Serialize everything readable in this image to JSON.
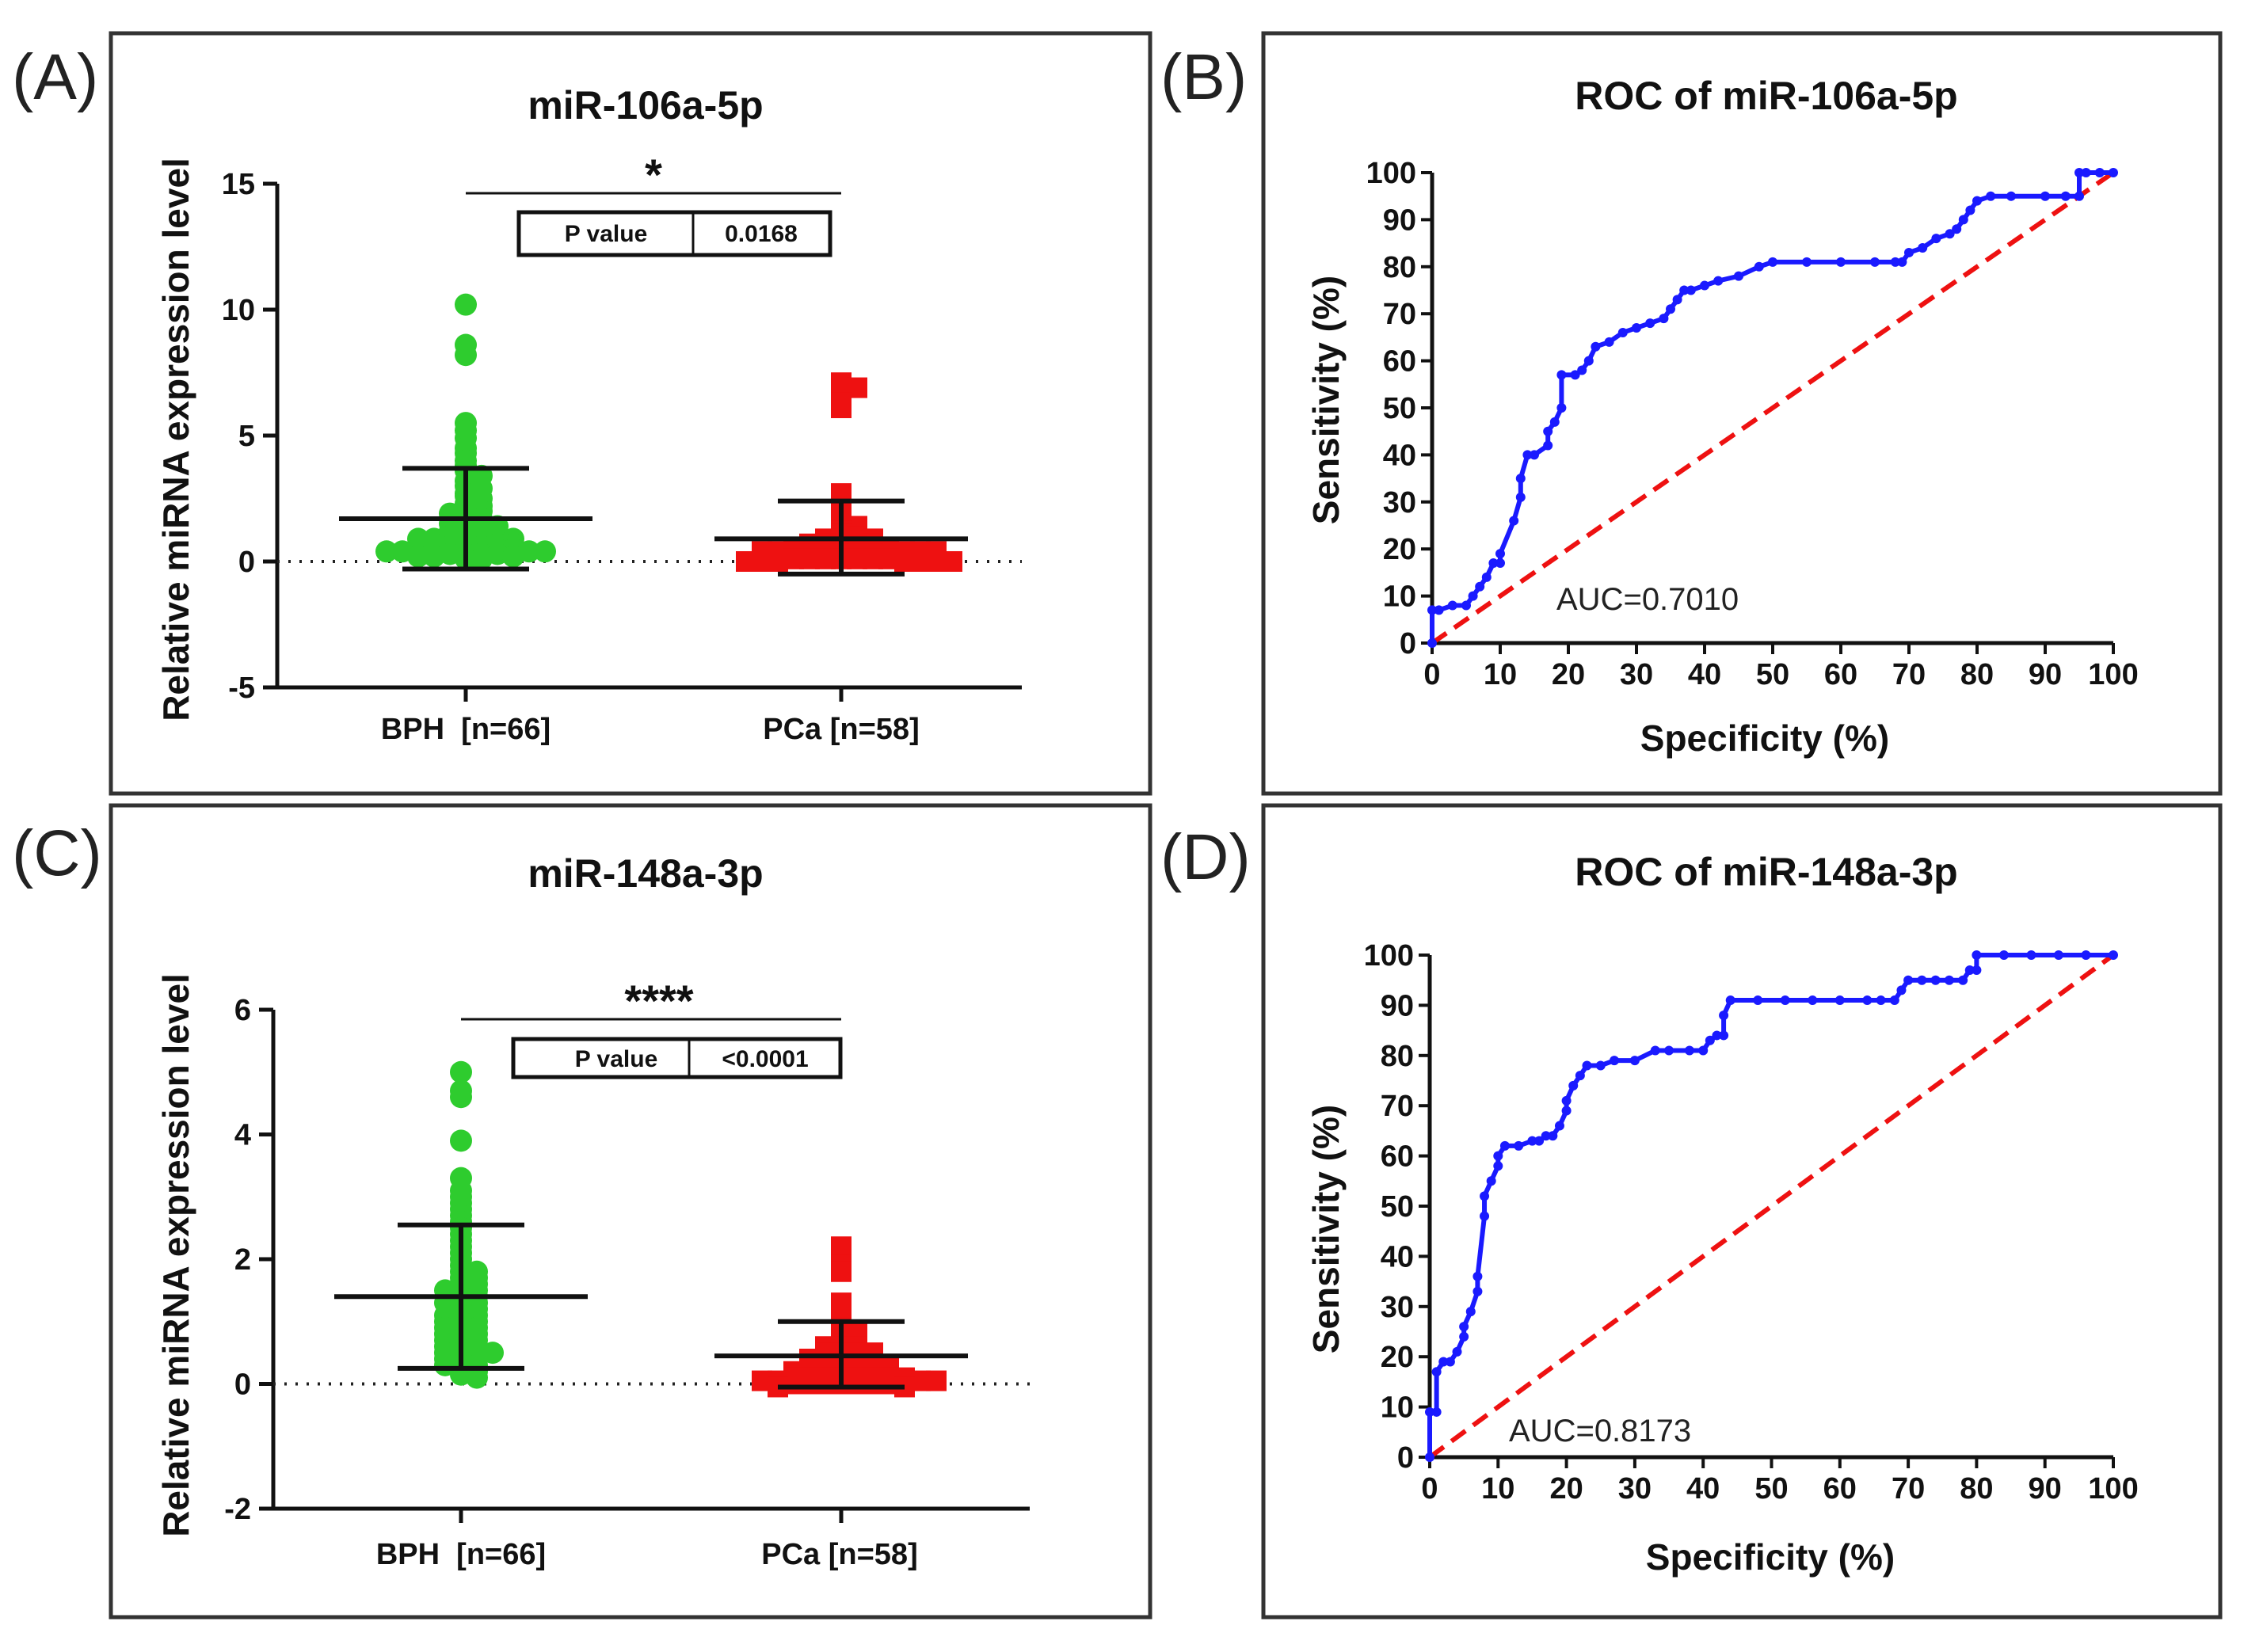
{
  "figure": {
    "panels": [
      {
        "letter": "(A)"
      },
      {
        "letter": "(B)"
      },
      {
        "letter": "(C)"
      },
      {
        "letter": "(D)"
      }
    ]
  },
  "colors": {
    "bph": "#2ecc2e",
    "pca": "#ee1111",
    "roc": "#1a1aff",
    "reference": "#ee1111",
    "axis": "#111111"
  },
  "chart_data": [
    {
      "type": "scatter",
      "title": "miR-106a-5p",
      "ylabel": "Relative miRNA expression level",
      "xlabel": "",
      "ylim": [
        -5,
        15
      ],
      "yticks": [
        "-5",
        "0",
        "5",
        "10",
        "15"
      ],
      "ytick_values": [
        -5,
        0,
        5,
        10,
        15
      ],
      "categories": [
        "BPH  [n=66]",
        "PCa [n=58]"
      ],
      "significance": "*",
      "pvalue_label": "P value",
      "pvalue": "0.0168",
      "series": [
        {
          "name": "BPH",
          "marker": "circle",
          "mean": 1.7,
          "sd_low": -0.3,
          "sd_high": 3.7,
          "values": [
            10.2,
            8.6,
            8.2,
            5.5,
            5.2,
            4.9,
            4.5,
            4.3,
            4.0,
            3.8,
            3.6,
            3.4,
            3.2,
            3.0,
            2.9,
            2.7,
            2.6,
            2.5,
            2.3,
            2.2,
            2.1,
            2.0,
            1.9,
            1.8,
            1.7,
            1.6,
            1.5,
            1.5,
            1.4,
            1.3,
            1.3,
            1.2,
            1.2,
            1.1,
            1.1,
            1.0,
            1.0,
            0.9,
            0.9,
            0.9,
            0.8,
            0.8,
            0.8,
            0.7,
            0.7,
            0.7,
            0.6,
            0.6,
            0.6,
            0.5,
            0.5,
            0.5,
            0.5,
            0.4,
            0.4,
            0.4,
            0.4,
            0.3,
            0.3,
            0.3,
            0.3,
            0.2,
            0.2,
            0.2,
            0.1,
            0.1
          ]
        },
        {
          "name": "PCa",
          "marker": "square",
          "mean": 0.9,
          "sd_low": -0.5,
          "sd_high": 2.4,
          "values": [
            7.1,
            6.9,
            6.3,
            6.1,
            2.7,
            2.5,
            2.3,
            2.0,
            1.8,
            1.6,
            1.4,
            1.2,
            1.1,
            1.0,
            0.9,
            0.9,
            0.8,
            0.8,
            0.7,
            0.7,
            0.7,
            0.6,
            0.6,
            0.6,
            0.5,
            0.5,
            0.5,
            0.5,
            0.4,
            0.4,
            0.4,
            0.4,
            0.4,
            0.3,
            0.3,
            0.3,
            0.3,
            0.3,
            0.2,
            0.2,
            0.2,
            0.2,
            0.2,
            0.2,
            0.1,
            0.1,
            0.1,
            0.1,
            0.1,
            0.1,
            0.1,
            0.0,
            0.0,
            0.0,
            0.0,
            0.0,
            0.0,
            0.0
          ]
        }
      ]
    },
    {
      "type": "line",
      "title": "ROC of miR-106a-5p",
      "xlabel": "Specificity (%)",
      "ylabel": "Sensitivity (%)",
      "xlim": [
        0,
        100
      ],
      "ylim": [
        0,
        100
      ],
      "xticks": [
        "0",
        "10",
        "20",
        "30",
        "40",
        "50",
        "60",
        "70",
        "80",
        "90",
        "100"
      ],
      "yticks": [
        "0",
        "10",
        "20",
        "30",
        "40",
        "50",
        "60",
        "70",
        "80",
        "90",
        "100"
      ],
      "annotation": "AUC=0.7010",
      "series": [
        {
          "name": "ROC",
          "x": [
            0,
            0,
            1,
            3,
            5,
            6,
            7,
            8,
            9,
            10,
            10,
            12,
            13,
            13,
            14,
            15,
            17,
            17,
            18,
            19,
            19,
            21,
            22,
            23,
            24,
            26,
            28,
            30,
            32,
            34,
            35,
            36,
            37,
            38,
            40,
            42,
            45,
            48,
            50,
            55,
            60,
            65,
            68,
            69,
            70,
            72,
            74,
            76,
            77,
            78,
            79,
            80,
            82,
            85,
            90,
            93,
            95,
            95,
            96,
            98,
            100
          ],
          "y": [
            0,
            7,
            7,
            8,
            8,
            10,
            12,
            14,
            17,
            17,
            19,
            26,
            31,
            35,
            40,
            40,
            42,
            45,
            47,
            50,
            57,
            57,
            58,
            60,
            63,
            64,
            66,
            67,
            68,
            69,
            71,
            73,
            75,
            75,
            76,
            77,
            78,
            80,
            81,
            81,
            81,
            81,
            81,
            81,
            83,
            84,
            86,
            87,
            88,
            90,
            92,
            94,
            95,
            95,
            95,
            95,
            95,
            100,
            100,
            100,
            100
          ]
        },
        {
          "name": "Reference",
          "x": [
            0,
            100
          ],
          "y": [
            0,
            100
          ]
        }
      ]
    },
    {
      "type": "scatter",
      "title": "miR-148a-3p",
      "ylabel": "Relative miRNA expression level",
      "xlabel": "",
      "ylim": [
        -2,
        6
      ],
      "yticks": [
        "-2",
        "0",
        "2",
        "4",
        "6"
      ],
      "ytick_values": [
        -2,
        0,
        2,
        4,
        6
      ],
      "categories": [
        "BPH  [n=66]",
        "PCa [n=58]"
      ],
      "significance": "****",
      "pvalue_label": "P value",
      "pvalue": "<0.0001",
      "series": [
        {
          "name": "BPH",
          "marker": "circle",
          "mean": 1.4,
          "sd_low": 0.25,
          "sd_high": 2.55,
          "values": [
            5.0,
            4.7,
            4.6,
            3.9,
            3.3,
            3.1,
            3.0,
            2.9,
            2.8,
            2.7,
            2.6,
            2.5,
            2.4,
            2.3,
            2.2,
            2.1,
            2.0,
            1.9,
            1.8,
            1.8,
            1.7,
            1.7,
            1.6,
            1.6,
            1.5,
            1.5,
            1.5,
            1.4,
            1.4,
            1.3,
            1.3,
            1.3,
            1.2,
            1.2,
            1.1,
            1.1,
            1.1,
            1.0,
            1.0,
            1.0,
            0.9,
            0.9,
            0.9,
            0.8,
            0.8,
            0.8,
            0.7,
            0.7,
            0.7,
            0.6,
            0.6,
            0.6,
            0.5,
            0.5,
            0.5,
            0.5,
            0.4,
            0.4,
            0.4,
            0.3,
            0.3,
            0.3,
            0.2,
            0.2,
            0.15,
            0.1
          ]
        },
        {
          "name": "PCa",
          "marker": "square",
          "mean": 0.45,
          "sd_low": -0.05,
          "sd_high": 1.0,
          "values": [
            2.2,
            2.1,
            2.0,
            1.9,
            1.8,
            1.3,
            1.0,
            0.9,
            0.8,
            0.8,
            0.7,
            0.7,
            0.6,
            0.6,
            0.6,
            0.5,
            0.5,
            0.5,
            0.5,
            0.4,
            0.4,
            0.4,
            0.4,
            0.4,
            0.3,
            0.3,
            0.3,
            0.3,
            0.3,
            0.3,
            0.2,
            0.2,
            0.2,
            0.2,
            0.2,
            0.2,
            0.2,
            0.1,
            0.1,
            0.1,
            0.1,
            0.1,
            0.1,
            0.1,
            0.1,
            0.05,
            0.05,
            0.05,
            0.05,
            0.0,
            0.0,
            0.0,
            0.0,
            0.0,
            0.0,
            0.0,
            -0.05,
            -0.05
          ]
        }
      ]
    },
    {
      "type": "line",
      "title": "ROC of miR-148a-3p",
      "xlabel": "Specificity (%)",
      "ylabel": "Sensitivity (%)",
      "xlim": [
        0,
        100
      ],
      "ylim": [
        0,
        100
      ],
      "xticks": [
        "0",
        "10",
        "20",
        "30",
        "40",
        "50",
        "60",
        "70",
        "80",
        "90",
        "100"
      ],
      "yticks": [
        "0",
        "10",
        "20",
        "30",
        "40",
        "50",
        "60",
        "70",
        "80",
        "90",
        "100"
      ],
      "annotation": "AUC=0.8173",
      "series": [
        {
          "name": "ROC",
          "x": [
            0,
            0,
            1,
            1,
            2,
            3,
            4,
            5,
            5,
            6,
            7,
            7,
            8,
            8,
            9,
            10,
            10,
            11,
            13,
            15,
            16,
            17,
            18,
            19,
            20,
            20,
            21,
            22,
            23,
            25,
            27,
            30,
            33,
            35,
            38,
            40,
            41,
            42,
            43,
            43,
            44,
            48,
            52,
            56,
            60,
            64,
            66,
            68,
            69,
            70,
            72,
            74,
            76,
            78,
            79,
            80,
            80,
            84,
            88,
            92,
            96,
            100
          ],
          "y": [
            0,
            9,
            9,
            17,
            19,
            19,
            21,
            24,
            26,
            29,
            33,
            36,
            48,
            52,
            55,
            58,
            60,
            62,
            62,
            63,
            63,
            64,
            64,
            66,
            69,
            71,
            74,
            76,
            78,
            78,
            79,
            79,
            81,
            81,
            81,
            81,
            83,
            84,
            84,
            88,
            91,
            91,
            91,
            91,
            91,
            91,
            91,
            91,
            93,
            95,
            95,
            95,
            95,
            95,
            97,
            97,
            100,
            100,
            100,
            100,
            100,
            100
          ]
        },
        {
          "name": "Reference",
          "x": [
            0,
            100
          ],
          "y": [
            0,
            100
          ]
        }
      ]
    }
  ]
}
